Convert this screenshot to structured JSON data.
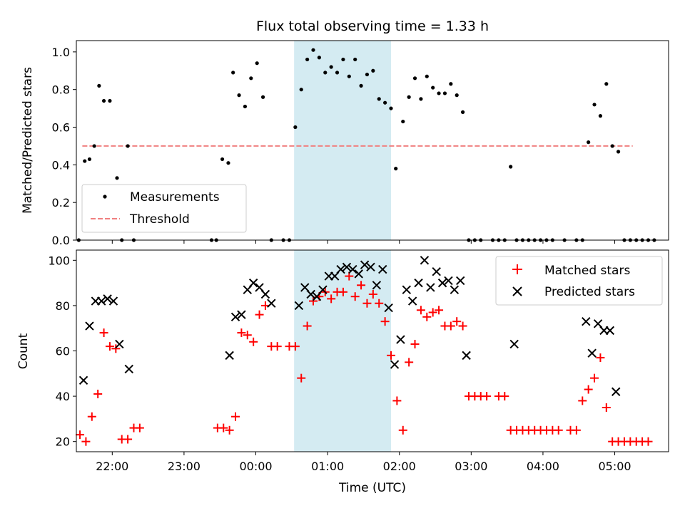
{
  "chart_data": [
    {
      "type": "scatter",
      "title": "Flux total observing time = 1.33 h",
      "ylabel": "Matched/Predicted stars",
      "xlabel": "",
      "xlim": [
        "21:30",
        "05:45"
      ],
      "ylim": [
        0,
        1.06
      ],
      "yticks": [
        "0.0",
        "0.2",
        "0.4",
        "0.6",
        "0.8",
        "1.0"
      ],
      "highlight_interval": [
        "00:32",
        "01:53"
      ],
      "highlight_color": "#d4ebf2",
      "threshold": {
        "name": "Threshold",
        "value": 0.5,
        "x_range": [
          "21:35",
          "05:15"
        ],
        "color": "#f08080"
      },
      "legend": {
        "position": "lower-left",
        "entries": [
          "Measurements",
          "Threshold"
        ]
      },
      "series": [
        {
          "name": "Measurements",
          "color": "#000000",
          "points": [
            [
              "21:32",
              0.0
            ],
            [
              "21:37",
              0.42
            ],
            [
              "21:41",
              0.43
            ],
            [
              "21:45",
              0.5
            ],
            [
              "21:49",
              0.82
            ],
            [
              "21:53",
              0.74
            ],
            [
              "21:58",
              0.74
            ],
            [
              "22:04",
              0.33
            ],
            [
              "22:08",
              0.0
            ],
            [
              "22:13",
              0.5
            ],
            [
              "22:18",
              0.0
            ],
            [
              "23:23",
              0.0
            ],
            [
              "23:27",
              0.0
            ],
            [
              "23:32",
              0.43
            ],
            [
              "23:37",
              0.41
            ],
            [
              "23:41",
              0.89
            ],
            [
              "23:46",
              0.77
            ],
            [
              "23:51",
              0.71
            ],
            [
              "23:56",
              0.86
            ],
            [
              "00:01",
              0.94
            ],
            [
              "00:06",
              0.76
            ],
            [
              "00:13",
              0.0
            ],
            [
              "00:23",
              0.0
            ],
            [
              "00:28",
              0.0
            ],
            [
              "00:33",
              0.6
            ],
            [
              "00:38",
              0.8
            ],
            [
              "00:43",
              0.96
            ],
            [
              "00:48",
              1.01
            ],
            [
              "00:53",
              0.97
            ],
            [
              "00:58",
              0.89
            ],
            [
              "01:03",
              0.92
            ],
            [
              "01:08",
              0.89
            ],
            [
              "01:13",
              0.96
            ],
            [
              "01:18",
              0.87
            ],
            [
              "01:23",
              0.96
            ],
            [
              "01:28",
              0.82
            ],
            [
              "01:33",
              0.88
            ],
            [
              "01:38",
              0.9
            ],
            [
              "01:43",
              0.75
            ],
            [
              "01:48",
              0.73
            ],
            [
              "01:53",
              0.7
            ],
            [
              "01:57",
              0.38
            ],
            [
              "02:03",
              0.63
            ],
            [
              "02:08",
              0.76
            ],
            [
              "02:13",
              0.86
            ],
            [
              "02:18",
              0.75
            ],
            [
              "02:23",
              0.87
            ],
            [
              "02:28",
              0.81
            ],
            [
              "02:33",
              0.78
            ],
            [
              "02:38",
              0.78
            ],
            [
              "02:43",
              0.83
            ],
            [
              "02:48",
              0.77
            ],
            [
              "02:53",
              0.68
            ],
            [
              "02:58",
              0.0
            ],
            [
              "03:03",
              0.0
            ],
            [
              "03:08",
              0.0
            ],
            [
              "03:18",
              0.0
            ],
            [
              "03:23",
              0.0
            ],
            [
              "03:28",
              0.0
            ],
            [
              "03:33",
              0.39
            ],
            [
              "03:38",
              0.0
            ],
            [
              "03:43",
              0.0
            ],
            [
              "03:48",
              0.0
            ],
            [
              "03:53",
              0.0
            ],
            [
              "03:58",
              0.0
            ],
            [
              "04:03",
              0.0
            ],
            [
              "04:08",
              0.0
            ],
            [
              "04:18",
              0.0
            ],
            [
              "04:28",
              0.0
            ],
            [
              "04:33",
              0.0
            ],
            [
              "04:38",
              0.52
            ],
            [
              "04:43",
              0.72
            ],
            [
              "04:48",
              0.66
            ],
            [
              "04:53",
              0.83
            ],
            [
              "04:58",
              0.5
            ],
            [
              "05:03",
              0.47
            ],
            [
              "05:08",
              0.0
            ],
            [
              "05:13",
              0.0
            ],
            [
              "05:18",
              0.0
            ],
            [
              "05:23",
              0.0
            ],
            [
              "05:28",
              0.0
            ],
            [
              "05:33",
              0.0
            ]
          ]
        }
      ]
    },
    {
      "type": "scatter",
      "title": "",
      "ylabel": "Count",
      "xlabel": "Time (UTC)",
      "xlim": [
        "21:30",
        "05:45"
      ],
      "ylim": [
        15.5,
        104.5
      ],
      "yticks": [
        "20",
        "40",
        "60",
        "80",
        "100"
      ],
      "xticks": [
        "22:00",
        "23:00",
        "00:00",
        "01:00",
        "02:00",
        "03:00",
        "04:00",
        "05:00"
      ],
      "highlight_interval": [
        "00:32",
        "01:53"
      ],
      "legend": {
        "position": "top-right",
        "entries": [
          "Matched stars",
          "Predicted stars"
        ]
      },
      "series": [
        {
          "name": "Matched stars",
          "marker": "plus",
          "color": "#ff0000",
          "points": [
            [
              "21:33",
              23
            ],
            [
              "21:38",
              20
            ],
            [
              "21:43",
              31
            ],
            [
              "21:48",
              41
            ],
            [
              "21:53",
              68
            ],
            [
              "21:58",
              62
            ],
            [
              "22:03",
              61
            ],
            [
              "22:08",
              21
            ],
            [
              "22:13",
              21
            ],
            [
              "22:18",
              26
            ],
            [
              "22:23",
              26
            ],
            [
              "23:28",
              26
            ],
            [
              "23:33",
              26
            ],
            [
              "23:38",
              25
            ],
            [
              "23:43",
              31
            ],
            [
              "23:48",
              68
            ],
            [
              "23:53",
              67
            ],
            [
              "23:58",
              64
            ],
            [
              "00:03",
              76
            ],
            [
              "00:08",
              80
            ],
            [
              "00:13",
              62
            ],
            [
              "00:18",
              62
            ],
            [
              "00:28",
              62
            ],
            [
              "00:33",
              62
            ],
            [
              "00:38",
              48
            ],
            [
              "00:43",
              71
            ],
            [
              "00:48",
              82
            ],
            [
              "00:53",
              84
            ],
            [
              "00:58",
              86
            ],
            [
              "01:03",
              83
            ],
            [
              "01:08",
              86
            ],
            [
              "01:13",
              86
            ],
            [
              "01:18",
              93
            ],
            [
              "01:23",
              84
            ],
            [
              "01:28",
              89
            ],
            [
              "01:33",
              81
            ],
            [
              "01:38",
              85
            ],
            [
              "01:43",
              81
            ],
            [
              "01:48",
              73
            ],
            [
              "01:53",
              58
            ],
            [
              "01:58",
              38
            ],
            [
              "02:03",
              25
            ],
            [
              "02:08",
              55
            ],
            [
              "02:13",
              63
            ],
            [
              "02:18",
              78
            ],
            [
              "02:23",
              75
            ],
            [
              "02:28",
              77
            ],
            [
              "02:33",
              78
            ],
            [
              "02:38",
              71
            ],
            [
              "02:43",
              71
            ],
            [
              "02:48",
              73
            ],
            [
              "02:53",
              71
            ],
            [
              "02:58",
              40
            ],
            [
              "03:03",
              40
            ],
            [
              "03:08",
              40
            ],
            [
              "03:13",
              40
            ],
            [
              "03:23",
              40
            ],
            [
              "03:28",
              40
            ],
            [
              "03:33",
              25
            ],
            [
              "03:38",
              25
            ],
            [
              "03:43",
              25
            ],
            [
              "03:48",
              25
            ],
            [
              "03:53",
              25
            ],
            [
              "03:58",
              25
            ],
            [
              "04:03",
              25
            ],
            [
              "04:08",
              25
            ],
            [
              "04:13",
              25
            ],
            [
              "04:23",
              25
            ],
            [
              "04:28",
              25
            ],
            [
              "04:33",
              38
            ],
            [
              "04:38",
              43
            ],
            [
              "04:43",
              48
            ],
            [
              "04:48",
              57
            ],
            [
              "04:53",
              35
            ],
            [
              "04:58",
              20
            ],
            [
              "05:03",
              20
            ],
            [
              "05:08",
              20
            ],
            [
              "05:13",
              20
            ],
            [
              "05:18",
              20
            ],
            [
              "05:23",
              20
            ],
            [
              "05:28",
              20
            ]
          ]
        },
        {
          "name": "Predicted stars",
          "marker": "x",
          "color": "#000000",
          "points": [
            [
              "21:36",
              47
            ],
            [
              "21:41",
              71
            ],
            [
              "21:46",
              82
            ],
            [
              "21:51",
              82
            ],
            [
              "21:56",
              83
            ],
            [
              "22:01",
              82
            ],
            [
              "22:06",
              63
            ],
            [
              "22:14",
              52
            ],
            [
              "23:38",
              58
            ],
            [
              "23:43",
              75
            ],
            [
              "23:48",
              76
            ],
            [
              "23:53",
              87
            ],
            [
              "23:58",
              90
            ],
            [
              "00:03",
              88
            ],
            [
              "00:08",
              85
            ],
            [
              "00:13",
              81
            ],
            [
              "00:36",
              80
            ],
            [
              "00:41",
              88
            ],
            [
              "00:46",
              85
            ],
            [
              "00:51",
              84
            ],
            [
              "00:56",
              87
            ],
            [
              "01:01",
              93
            ],
            [
              "01:06",
              93
            ],
            [
              "01:11",
              96
            ],
            [
              "01:16",
              97
            ],
            [
              "01:21",
              96
            ],
            [
              "01:26",
              94
            ],
            [
              "01:31",
              98
            ],
            [
              "01:36",
              97
            ],
            [
              "01:41",
              89
            ],
            [
              "01:46",
              96
            ],
            [
              "01:51",
              79
            ],
            [
              "01:56",
              54
            ],
            [
              "02:01",
              65
            ],
            [
              "02:06",
              87
            ],
            [
              "02:11",
              82
            ],
            [
              "02:16",
              90
            ],
            [
              "02:21",
              100
            ],
            [
              "02:26",
              88
            ],
            [
              "02:31",
              95
            ],
            [
              "02:36",
              90
            ],
            [
              "02:41",
              91
            ],
            [
              "02:46",
              87
            ],
            [
              "02:51",
              91
            ],
            [
              "02:56",
              58
            ],
            [
              "03:36",
              63
            ],
            [
              "04:36",
              73
            ],
            [
              "04:41",
              59
            ],
            [
              "04:46",
              72
            ],
            [
              "04:51",
              69
            ],
            [
              "04:56",
              69
            ],
            [
              "05:01",
              42
            ]
          ]
        }
      ]
    }
  ]
}
